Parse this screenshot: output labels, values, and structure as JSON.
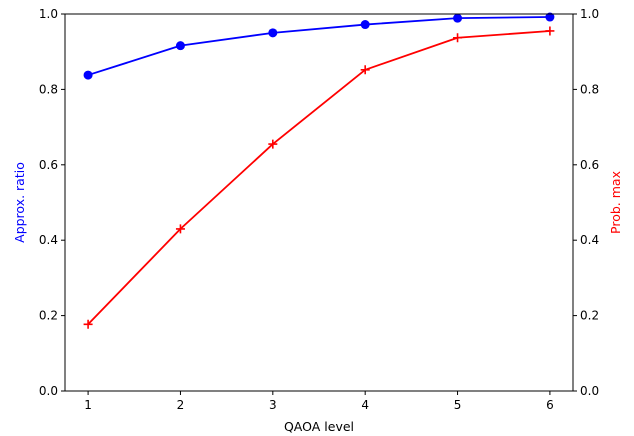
{
  "chart_data": {
    "type": "line",
    "xlabel": "QAOA level",
    "x": [
      1,
      2,
      3,
      4,
      5,
      6
    ],
    "x_ticks": [
      "1",
      "2",
      "3",
      "4",
      "5",
      "6"
    ],
    "xlim": [
      0.75,
      6.25
    ],
    "ylim": [
      0.0,
      1.0
    ],
    "y_ticks": [
      "0.0",
      "0.2",
      "0.4",
      "0.6",
      "0.8",
      "1.0"
    ],
    "ylabel_left": "Approx. ratio",
    "ylabel_right": "Prob. max",
    "grid": false,
    "series": [
      {
        "axis": "left",
        "color": "#0000ff",
        "marker": "circle",
        "values": [
          0.838,
          0.916,
          0.95,
          0.972,
          0.989,
          0.992
        ]
      },
      {
        "axis": "right",
        "color": "#ff0000",
        "marker": "plus",
        "values": [
          0.177,
          0.43,
          0.655,
          0.852,
          0.937,
          0.955
        ]
      }
    ]
  }
}
